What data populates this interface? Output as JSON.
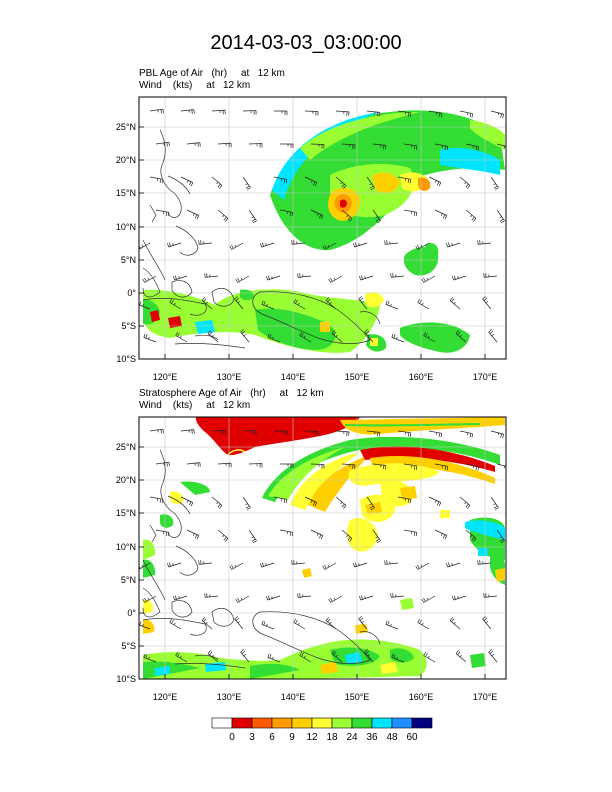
{
  "title": "2014-03-03_03:00:00",
  "panels": [
    {
      "id": "pbl",
      "field_line": [
        "PBL Age of Air",
        "(hr)",
        "at",
        "12 km"
      ],
      "wind_line": [
        "Wind",
        "(kts)",
        "at",
        "12 km"
      ]
    },
    {
      "id": "strat",
      "field_line": [
        "Stratosphere Age of Air",
        "(hr)",
        "at",
        "12 km"
      ],
      "wind_line": [
        "Wind",
        "(kts)",
        "at",
        "12 km"
      ]
    }
  ],
  "axes": {
    "lat_labels": [
      "25°N",
      "20°N",
      "15°N",
      "10°N",
      "5°N",
      "0°",
      "5°S",
      "10°S"
    ],
    "lon_labels": [
      "120°E",
      "130°E",
      "140°E",
      "150°E",
      "160°E",
      "170°E"
    ],
    "lat_range": [
      -10,
      29
    ],
    "lon_range": [
      116,
      173
    ]
  },
  "colorbar": {
    "labels": [
      "0",
      "3",
      "6",
      "9",
      "12",
      "18",
      "24",
      "36",
      "48",
      "60"
    ],
    "colors": [
      "#ffffff",
      "#e00000",
      "#ff5a00",
      "#ff9a00",
      "#ffd000",
      "#ffff33",
      "#99ff33",
      "#33dd33",
      "#00e5ff",
      "#1e90ff",
      "#000080"
    ]
  }
}
